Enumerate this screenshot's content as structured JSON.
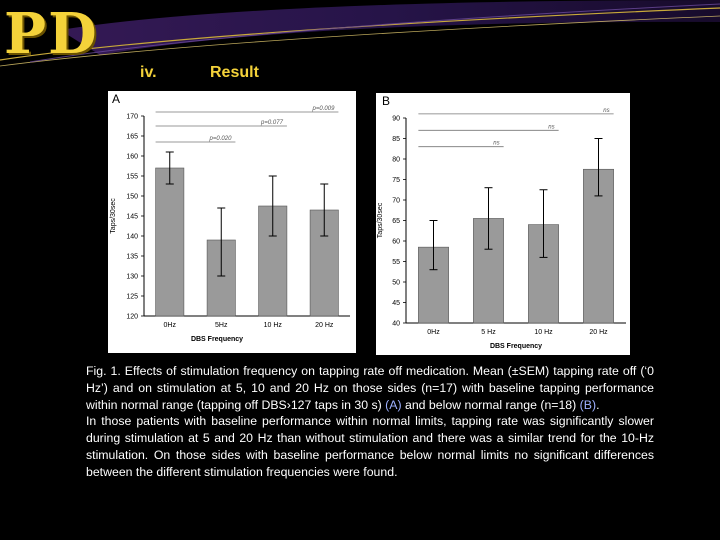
{
  "slide": {
    "logo": "PD",
    "section_number": "iv.",
    "section_title": "Result",
    "caption_p1_main": "Fig. 1. Effects of stimulation frequency on tapping rate off medication. Mean (±SEM) tapping rate off (‘0 Hz’) and on stimulation at 5, 10 and 20 Hz on those sides (n=17) with baseline tapping performance within normal range (tapping off DBS›127 taps in 30 s) ",
    "caption_p1_A": "(A)",
    "caption_p1_mid": " and below normal range (n=18) ",
    "caption_p1_B": "(B)",
    "caption_p1_end": ".",
    "caption_p2": "In those patients with baseline performance within normal limits, tapping rate was significantly slower during stimulation at 5 and 20 Hz than without stimulation and there was a similar trend for the 10-Hz stimulation. On those sides with baseline performance below normal limits no significant differences between the different stimulation frequencies were found.",
    "colors": {
      "logo": "#f4d23a",
      "bar": "#9a9a9a",
      "caption": "#ffffff",
      "highlight": "#9db0ff"
    }
  },
  "chart_data": [
    {
      "type": "bar",
      "panel_label": "A",
      "categories": [
        "0Hz",
        "5Hz",
        "10 Hz",
        "20 Hz"
      ],
      "values": [
        157,
        139,
        147.5,
        146.5
      ],
      "errors_upper": [
        161,
        147,
        155,
        153
      ],
      "errors_lower": [
        153,
        130,
        140,
        140
      ],
      "xlabel": "DBS Frequency",
      "ylabel": "Taps/30sec",
      "ylim": [
        120,
        170
      ],
      "yticks": [
        120,
        125,
        130,
        135,
        140,
        145,
        150,
        155,
        160,
        165,
        170
      ],
      "comparisons": [
        {
          "label": "p=0.009",
          "from": "0Hz",
          "to": "20 Hz",
          "level": 171
        },
        {
          "label": "p=0.077",
          "from": "0Hz",
          "to": "10 Hz",
          "level": 167.5
        },
        {
          "label": "p=0.020",
          "from": "0Hz",
          "to": "5Hz",
          "level": 163.5
        }
      ]
    },
    {
      "type": "bar",
      "panel_label": "B",
      "categories": [
        "0Hz",
        "5 Hz",
        "10 Hz",
        "20 Hz"
      ],
      "values": [
        58.5,
        65.5,
        64,
        77.5
      ],
      "errors_upper": [
        65,
        73,
        72.5,
        85
      ],
      "errors_lower": [
        53,
        58,
        56,
        71
      ],
      "xlabel": "DBS Frequency",
      "ylabel": "Taps/30sec",
      "ylim": [
        40,
        90
      ],
      "yticks": [
        40,
        45,
        50,
        55,
        60,
        65,
        70,
        75,
        80,
        85,
        90
      ],
      "comparisons": [
        {
          "label": "ns",
          "from": "0Hz",
          "to": "20 Hz",
          "level": 91
        },
        {
          "label": "ns",
          "from": "0Hz",
          "to": "10 Hz",
          "level": 87
        },
        {
          "label": "ns",
          "from": "0Hz",
          "to": "5 Hz",
          "level": 83
        }
      ]
    }
  ]
}
